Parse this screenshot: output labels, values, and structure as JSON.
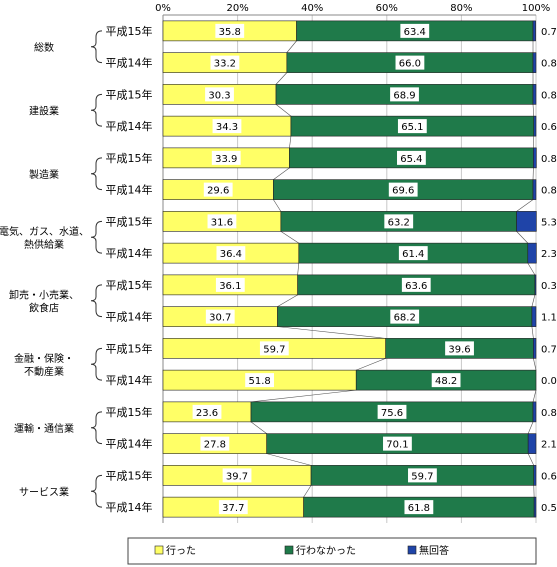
{
  "chart_data": {
    "type": "bar",
    "orientation": "horizontal",
    "stacked": true,
    "percent": true,
    "xlim": [
      0,
      100
    ],
    "x_ticks": [
      "0%",
      "20%",
      "40%",
      "60%",
      "80%",
      "100%"
    ],
    "legend": {
      "position": "bottom",
      "entries": [
        "行った",
        "行わなかった",
        "無回答"
      ]
    },
    "colors": [
      "#ffff66",
      "#1f7a4a",
      "#1f44a8"
    ],
    "groups": [
      {
        "label": "総数",
        "bars": [
          {
            "label": "平成15年",
            "values": [
              35.8,
              63.4,
              0.7
            ]
          },
          {
            "label": "平成14年",
            "values": [
              33.2,
              66.0,
              0.8
            ]
          }
        ]
      },
      {
        "label": "建設業",
        "bars": [
          {
            "label": "平成15年",
            "values": [
              30.3,
              68.9,
              0.8
            ]
          },
          {
            "label": "平成14年",
            "values": [
              34.3,
              65.1,
              0.6
            ]
          }
        ]
      },
      {
        "label": "製造業",
        "bars": [
          {
            "label": "平成15年",
            "values": [
              33.9,
              65.4,
              0.8
            ]
          },
          {
            "label": "平成14年",
            "values": [
              29.6,
              69.6,
              0.8
            ]
          }
        ]
      },
      {
        "label": "電気、ガス、水道、熱供給業",
        "bars": [
          {
            "label": "平成15年",
            "values": [
              31.6,
              63.2,
              5.3
            ]
          },
          {
            "label": "平成14年",
            "values": [
              36.4,
              61.4,
              2.3
            ]
          }
        ]
      },
      {
        "label": "卸売・小売業、飲食店",
        "bars": [
          {
            "label": "平成15年",
            "values": [
              36.1,
              63.6,
              0.3
            ]
          },
          {
            "label": "平成14年",
            "values": [
              30.7,
              68.2,
              1.1
            ]
          }
        ]
      },
      {
        "label": "金融・保険・不動産業",
        "bars": [
          {
            "label": "平成15年",
            "values": [
              59.7,
              39.6,
              0.7
            ]
          },
          {
            "label": "平成14年",
            "values": [
              51.8,
              48.2,
              0.0
            ]
          }
        ]
      },
      {
        "label": "運輸・通信業",
        "bars": [
          {
            "label": "平成15年",
            "values": [
              23.6,
              75.6,
              0.8
            ]
          },
          {
            "label": "平成14年",
            "values": [
              27.8,
              70.1,
              2.1
            ]
          }
        ]
      },
      {
        "label": "サービス業",
        "bars": [
          {
            "label": "平成15年",
            "values": [
              39.7,
              59.7,
              0.6
            ]
          },
          {
            "label": "平成14年",
            "values": [
              37.7,
              61.8,
              0.5
            ]
          }
        ]
      }
    ]
  }
}
